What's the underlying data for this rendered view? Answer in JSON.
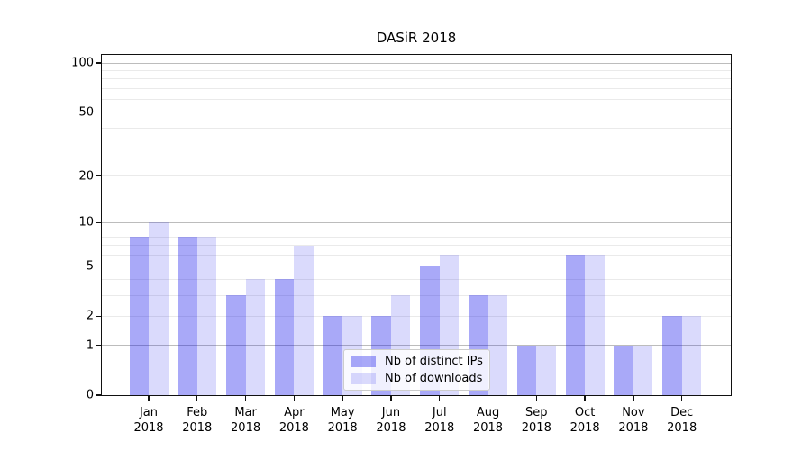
{
  "title": "DASiR 2018",
  "chart_data": {
    "type": "bar",
    "title": "DASiR 2018",
    "x_axis": {
      "months": [
        "Jan",
        "Feb",
        "Mar",
        "Apr",
        "May",
        "Jun",
        "Jul",
        "Aug",
        "Sep",
        "Oct",
        "Nov",
        "Dec"
      ],
      "year": "2018"
    },
    "series": [
      {
        "name": "Nb of distinct IPs",
        "color_hex": "#a6a6f4",
        "color_rgba": "rgba(10,10,235,0.35)",
        "values": [
          8,
          8,
          3,
          4,
          2,
          2,
          5,
          3,
          1,
          6,
          1,
          2
        ]
      },
      {
        "name": "Nb of downloads",
        "color_hex": "#dadaf9",
        "color_rgba": "rgba(10,10,235,0.15)",
        "values": [
          10,
          8,
          4,
          7,
          2,
          3,
          6,
          3,
          1,
          6,
          1,
          2
        ]
      }
    ],
    "y_axis": {
      "scale": "log1p",
      "tick_labels": [
        0,
        1,
        2,
        5,
        10,
        20,
        50,
        100
      ],
      "major_gridlines": [
        1,
        10,
        100
      ],
      "minor_gridlines": [
        2,
        3,
        4,
        5,
        6,
        7,
        8,
        9,
        20,
        30,
        40,
        50,
        60,
        70,
        80,
        90
      ],
      "top_value": 113
    },
    "legend": {
      "position": "lower-center",
      "entries": [
        "Nb of distinct IPs",
        "Nb of downloads"
      ]
    },
    "grid": true
  },
  "colors": {
    "background": "#ffffff",
    "spine": "#111111",
    "major_grid": "#bcbcbc",
    "minor_grid": "#eaeaea",
    "text": "#000000",
    "legend_border": "#cccccc"
  }
}
